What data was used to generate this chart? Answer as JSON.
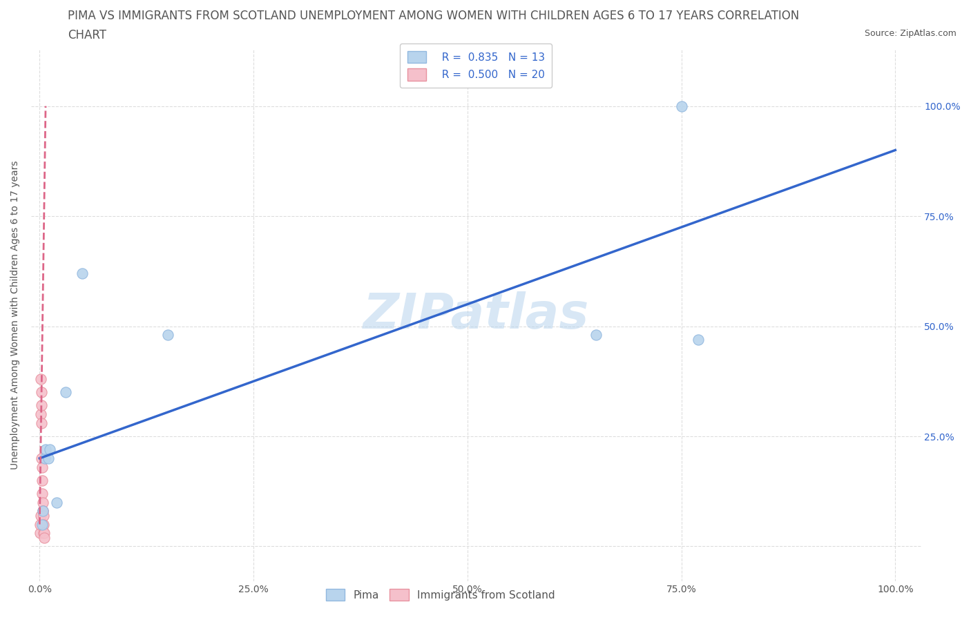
{
  "title_line1": "PIMA VS IMMIGRANTS FROM SCOTLAND UNEMPLOYMENT AMONG WOMEN WITH CHILDREN AGES 6 TO 17 YEARS CORRELATION",
  "title_line2": "CHART",
  "source_text": "Source: ZipAtlas.com",
  "watermark": "ZIPatlas",
  "ylabel": "Unemployment Among Women with Children Ages 6 to 17 years",
  "pima_R": 0.835,
  "pima_N": 13,
  "scotland_R": 0.5,
  "scotland_N": 20,
  "pima_color": "#b8d4ed",
  "pima_color_edge": "#92b8df",
  "scotland_color": "#f5c0cb",
  "scotland_color_edge": "#e8929f",
  "regression_blue": "#3366cc",
  "regression_pink": "#dd6688",
  "pima_x": [
    0.3,
    0.4,
    0.6,
    0.7,
    1.0,
    1.2,
    2.0,
    3.0,
    5.0,
    15.0,
    65.0,
    75.0,
    77.0
  ],
  "pima_y": [
    5.0,
    8.0,
    20.0,
    22.0,
    20.0,
    22.0,
    10.0,
    35.0,
    62.0,
    48.0,
    48.0,
    100.0,
    47.0
  ],
  "scotland_x": [
    0.05,
    0.08,
    0.1,
    0.12,
    0.15,
    0.18,
    0.2,
    0.22,
    0.25,
    0.28,
    0.3,
    0.33,
    0.35,
    0.38,
    0.4,
    0.43,
    0.45,
    0.48,
    0.5,
    0.55
  ],
  "scotland_y": [
    3.0,
    5.0,
    7.0,
    38.0,
    30.0,
    28.0,
    35.0,
    32.0,
    20.0,
    18.0,
    15.0,
    12.0,
    10.0,
    8.0,
    8.0,
    7.0,
    5.0,
    3.0,
    3.0,
    2.0
  ],
  "pima_reg_x0": 0.0,
  "pima_reg_y0": 20.0,
  "pima_reg_x1": 100.0,
  "pima_reg_y1": 90.0,
  "scot_reg_x0": 0.0,
  "scot_reg_y0": 5.0,
  "scot_reg_x1": 0.7,
  "scot_reg_y1": 100.0,
  "xlim_left": -1.0,
  "xlim_right": 103.0,
  "ylim_bottom": -8.0,
  "ylim_top": 113.0,
  "xticks": [
    0.0,
    25.0,
    50.0,
    75.0,
    100.0
  ],
  "yticks": [
    0.0,
    25.0,
    50.0,
    75.0,
    100.0
  ],
  "xticklabels": [
    "0.0%",
    "25.0%",
    "50.0%",
    "75.0%",
    "100.0%"
  ],
  "ytick_right_labels": [
    "",
    "25.0%",
    "50.0%",
    "75.0%",
    "100.0%"
  ],
  "background_color": "#ffffff",
  "grid_color": "#dddddd",
  "title_color": "#555555",
  "axis_color": "#555555",
  "right_tick_color": "#3366cc",
  "marker_size": 120,
  "font_size_title": 12,
  "font_size_axis": 10,
  "font_size_ticks": 10,
  "font_size_legend": 11,
  "font_size_source": 9,
  "font_size_watermark": 52
}
